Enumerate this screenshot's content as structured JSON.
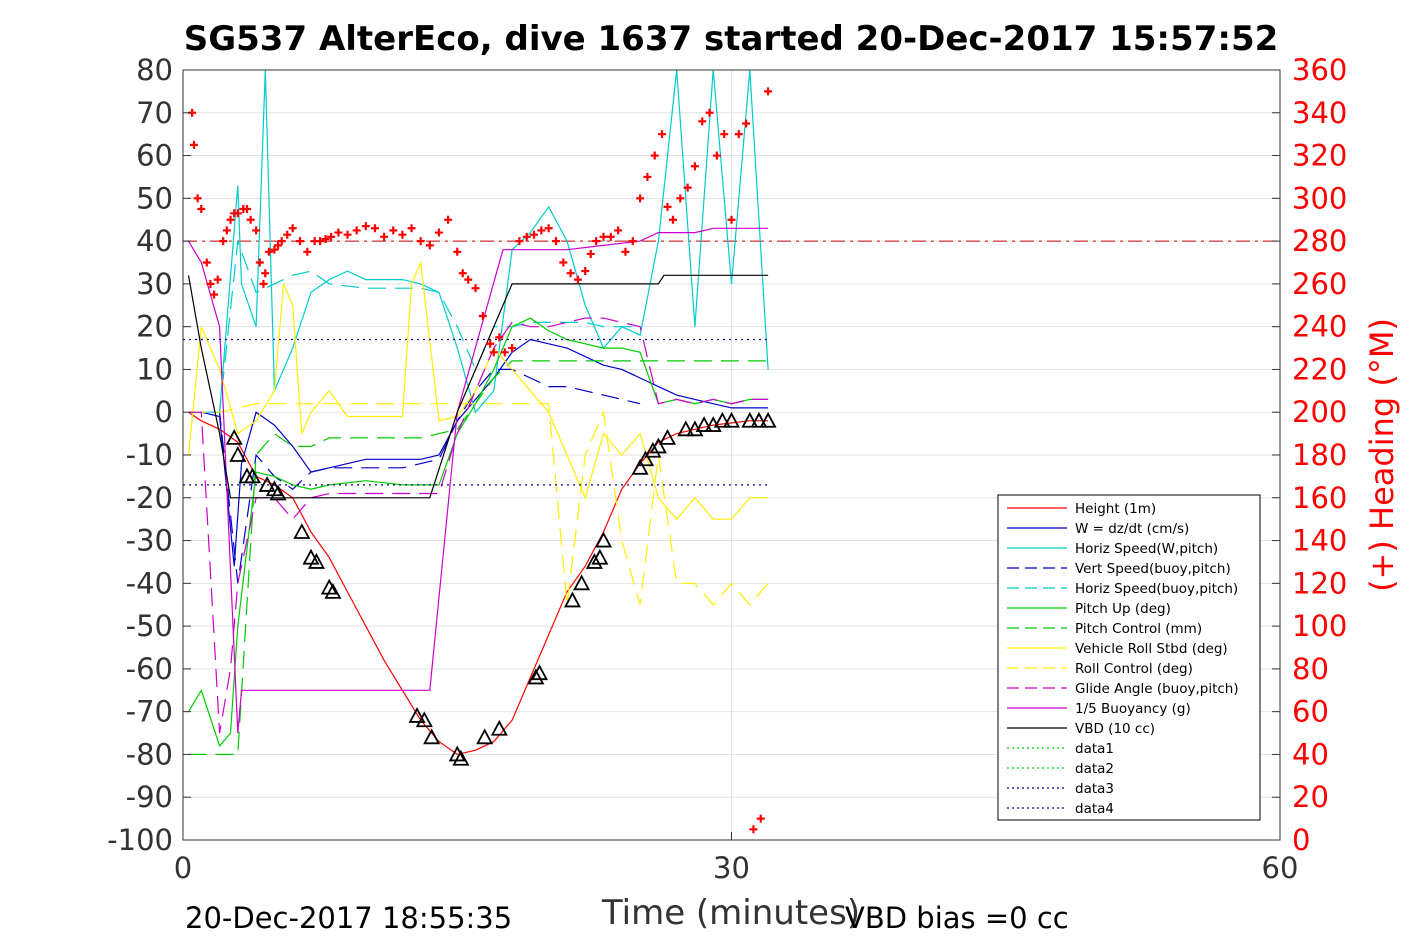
{
  "chart_data": {
    "type": "line",
    "title": "SG537 AlterEco, dive 1637 started 20-Dec-2017 15:57:52",
    "xlabel": "Time (minutes)",
    "ylabel_right": "(+) Heading (°M)",
    "xlim": [
      0,
      60
    ],
    "ylim": [
      -100,
      80
    ],
    "y2lim": [
      0,
      360
    ],
    "xticks": [
      0,
      30,
      60
    ],
    "yticks": [
      80,
      70,
      60,
      50,
      40,
      30,
      20,
      10,
      0,
      -10,
      -20,
      -30,
      -40,
      -50,
      -60,
      -70,
      -80,
      -90,
      -100
    ],
    "y2ticks": [
      360,
      340,
      320,
      300,
      280,
      260,
      240,
      220,
      200,
      180,
      160,
      140,
      120,
      100,
      80,
      60,
      40,
      20,
      0
    ],
    "grid": true,
    "legend_position": "lower-right",
    "footer_left": "20-Dec-2017 18:55:35",
    "footer_right": "VBD bias =0 cc",
    "colors": {
      "heading": "#ff0000",
      "axis_right": "#ff0000",
      "axis_left": "#333333"
    },
    "series": [
      {
        "name": "Height (1m)",
        "color": "#ff0000",
        "style": "solid",
        "x": [
          0.3,
          1,
          2,
          3,
          4,
          5,
          6,
          7,
          8,
          9,
          10,
          11,
          12,
          13,
          14,
          15,
          16,
          17,
          18,
          19,
          20,
          21,
          22,
          23,
          24,
          25,
          26,
          27,
          28,
          29,
          30,
          31,
          32
        ],
        "y": [
          0,
          -2,
          -4,
          -7,
          -15,
          -17,
          -20,
          -28,
          -34,
          -42,
          -50,
          -58,
          -65,
          -72,
          -77,
          -80,
          -79,
          -77,
          -72,
          -62,
          -52,
          -42,
          -36,
          -28,
          -18,
          -12,
          -7,
          -5,
          -4,
          -3,
          -2.5,
          -2,
          -2
        ]
      },
      {
        "name": "W = dz/dt (cm/s)",
        "color": "#0000cc",
        "style": "solid",
        "x": [
          0.3,
          1,
          2,
          2.8,
          3.2,
          4,
          5,
          6,
          7,
          8,
          10,
          12,
          13,
          14,
          15,
          16,
          17,
          18,
          19,
          20,
          21,
          22,
          23,
          24,
          25,
          26,
          27,
          28,
          29,
          30,
          31,
          32
        ],
        "y": [
          0,
          0,
          -1,
          -36,
          -12,
          0,
          -3,
          -8,
          -14,
          -13,
          -11,
          -11,
          -11,
          -10,
          -2,
          3,
          8,
          14,
          17,
          16,
          15,
          13,
          11,
          10,
          8,
          6,
          4,
          3,
          2,
          1,
          1,
          1
        ]
      },
      {
        "name": "Horiz Speed(W,pitch)",
        "color": "#00cccc",
        "style": "solid",
        "x": [
          0.3,
          2,
          3,
          3.2,
          4,
          4.5,
          5,
          6,
          7,
          8,
          9,
          10,
          12,
          13,
          14,
          15,
          16,
          17,
          18,
          19,
          20,
          21,
          22,
          23,
          24,
          25,
          26,
          27,
          28,
          29,
          30,
          31,
          32
        ],
        "y": [
          0,
          0,
          53,
          30,
          20,
          80,
          5,
          15,
          28,
          31,
          33,
          31,
          31,
          30,
          28,
          15,
          0,
          5,
          38,
          42,
          48,
          40,
          25,
          15,
          20,
          18,
          40,
          80,
          20,
          80,
          30,
          80,
          10
        ]
      },
      {
        "name": "Vert Speed(buoy,pitch)",
        "color": "#0000cc",
        "style": "dashed",
        "x": [
          0.3,
          2,
          3,
          4,
          5,
          6,
          7,
          8,
          10,
          12,
          13,
          14,
          15,
          16,
          17,
          18,
          19,
          20,
          21,
          22,
          23,
          24,
          25
        ],
        "y": [
          0,
          0,
          -40,
          -10,
          -15,
          -18,
          -14,
          -13,
          -13,
          -13,
          -12,
          -11,
          -2,
          5,
          10,
          10,
          8,
          6,
          6,
          5,
          4,
          3,
          2
        ]
      },
      {
        "name": "Horiz Speed(buoy,pitch)",
        "color": "#00cccc",
        "style": "dashed",
        "x": [
          0.3,
          2,
          3,
          4,
          5,
          6,
          7,
          8,
          10,
          12,
          13,
          14,
          15,
          16,
          17,
          18,
          19,
          20,
          21,
          22,
          23,
          24,
          25
        ],
        "y": [
          0,
          0,
          40,
          28,
          30,
          32,
          33,
          30,
          29,
          29,
          29,
          28,
          20,
          10,
          20,
          20,
          21,
          21,
          21,
          21,
          20,
          20,
          20
        ]
      },
      {
        "name": "Pitch Up (deg)",
        "color": "#00cc00",
        "style": "solid",
        "x": [
          0.3,
          1,
          2,
          2.6,
          3,
          4,
          5,
          6,
          7,
          8,
          10,
          12,
          13,
          14,
          15,
          16,
          17,
          18,
          19,
          20,
          21,
          22,
          23,
          24,
          25,
          26,
          27,
          28,
          29,
          30,
          31,
          32
        ],
        "y": [
          -70,
          -65,
          -78,
          -75,
          -50,
          -14,
          -15,
          -17,
          -18,
          -17,
          -16,
          -17,
          -17,
          -17,
          -5,
          2,
          10,
          20,
          22,
          19,
          17,
          16,
          15,
          15,
          14,
          2,
          3,
          2,
          3,
          2,
          3,
          3
        ]
      },
      {
        "name": "Pitch Control (mm)",
        "color": "#00cc00",
        "style": "dashed",
        "x": [
          0.3,
          2,
          3,
          4,
          5,
          6,
          7,
          8,
          10,
          12,
          13,
          14,
          15,
          16,
          17,
          18,
          19,
          20,
          21,
          22,
          23,
          24,
          25,
          26,
          27,
          28,
          29,
          30,
          31,
          32
        ],
        "y": [
          -80,
          -80,
          -80,
          -10,
          -5,
          -8,
          -8,
          -6,
          -6,
          -6,
          -6,
          -5,
          -4,
          2,
          8,
          12,
          12,
          12,
          12,
          12,
          12,
          12,
          12,
          12,
          12,
          12,
          12,
          12,
          12,
          12
        ]
      },
      {
        "name": "Vehicle Roll Stbd (deg)",
        "color": "#ffee00",
        "style": "solid",
        "x": [
          0.3,
          1,
          2,
          3,
          4,
          5,
          5.5,
          6,
          6.5,
          7,
          8,
          9,
          10,
          11,
          12,
          12.5,
          13,
          14,
          15,
          16,
          17,
          18,
          19,
          20,
          21,
          22,
          23,
          24,
          25,
          26,
          27,
          28,
          29,
          30,
          31,
          32
        ],
        "y": [
          -10,
          20,
          10,
          -5,
          -2,
          5,
          30,
          25,
          -5,
          0,
          5,
          -1,
          -1,
          -1,
          -1,
          30,
          35,
          -2,
          -1,
          5,
          15,
          10,
          5,
          0,
          -10,
          -20,
          -5,
          -10,
          -5,
          -20,
          -25,
          -20,
          -25,
          -25,
          -20,
          -20
        ]
      },
      {
        "name": "Roll Control (deg)",
        "color": "#ffee00",
        "style": "dashed",
        "x": [
          0.3,
          2,
          4,
          5,
          6,
          7,
          8,
          10,
          12,
          13,
          14,
          15,
          16,
          17,
          18,
          19,
          20,
          21,
          22,
          23,
          24,
          25,
          26,
          27,
          28,
          29,
          30,
          31,
          32
        ],
        "y": [
          0,
          0,
          2,
          2,
          2,
          2,
          2,
          2,
          2,
          2,
          2,
          2,
          2,
          2,
          2,
          2,
          2,
          -45,
          -10,
          0,
          -30,
          -45,
          -10,
          -40,
          -40,
          -45,
          -40,
          -45,
          -40
        ]
      },
      {
        "name": "Glide Angle (buoy,pitch)",
        "color": "#cc00cc",
        "style": "dashed",
        "x": [
          0.3,
          1,
          2,
          2.6,
          3,
          4,
          5,
          6,
          7,
          8,
          10,
          12,
          13,
          14,
          15,
          16,
          17,
          18,
          19,
          20,
          21,
          22,
          23,
          24,
          25,
          26,
          27,
          28,
          29,
          30,
          31,
          32
        ],
        "y": [
          0,
          0,
          -75,
          -60,
          -40,
          -20,
          -20,
          -25,
          -20,
          -19,
          -19,
          -19,
          -19,
          -19,
          -5,
          5,
          15,
          21,
          20,
          20,
          21,
          22,
          22,
          21,
          20,
          2,
          3,
          2,
          3,
          2,
          3,
          3
        ]
      },
      {
        "name": "1/5 Buoyancy (g)",
        "color": "#cc00cc",
        "style": "solid",
        "x": [
          0.3,
          1,
          2,
          3,
          3.2,
          7,
          10,
          13.5,
          15,
          17.5,
          19,
          21,
          23,
          25,
          26,
          27,
          28,
          29,
          30,
          31,
          32
        ],
        "y": [
          40,
          35,
          20,
          -75,
          -65,
          -65,
          -65,
          -65,
          0,
          38,
          38,
          38,
          39,
          40,
          42,
          42,
          42,
          43,
          43,
          43,
          43
        ]
      },
      {
        "name": "VBD (10 cc)",
        "color": "#000000",
        "style": "solid",
        "x": [
          0.3,
          1,
          2,
          2.6,
          3,
          13.5,
          15,
          17,
          18,
          26,
          26.3,
          32
        ],
        "y": [
          32,
          15,
          -5,
          -20,
          -20,
          -20,
          0,
          20,
          30,
          30,
          32,
          32
        ]
      },
      {
        "name": "data1",
        "color": "#00cc00",
        "style": "dotted",
        "x": [],
        "y": []
      },
      {
        "name": "data2",
        "color": "#00cc00",
        "style": "dotted",
        "x": [],
        "y": []
      },
      {
        "name": "data3",
        "color": "#000088",
        "style": "dotted",
        "x": [
          0,
          32
        ],
        "y": [
          17,
          17
        ]
      },
      {
        "name": "data4",
        "color": "#000088",
        "style": "dotted",
        "x": [
          0,
          32
        ],
        "y": [
          -17,
          -17
        ]
      }
    ],
    "reference_lines": [
      {
        "axis": "y2",
        "value": 280,
        "color": "#cc0000",
        "style": "dashdot"
      }
    ],
    "heading_points": {
      "axis": "y2",
      "marker": "+",
      "color": "#ff0000",
      "x": [
        0.5,
        0.6,
        0.8,
        1,
        1.3,
        1.5,
        1.7,
        1.9,
        2.2,
        2.4,
        2.6,
        2.8,
        3,
        3.3,
        3.5,
        3.7,
        4,
        4.2,
        4.4,
        4.5,
        4.7,
        5,
        5.2,
        5.4,
        5.7,
        6,
        6.4,
        6.8,
        7.2,
        7.5,
        7.8,
        8.1,
        8.5,
        9,
        9.5,
        10,
        10.5,
        11,
        11.5,
        12,
        12.5,
        13,
        13.5,
        14,
        14.5,
        15,
        15.3,
        15.6,
        16,
        16.4,
        16.8,
        17,
        17.3,
        17.6,
        18,
        18.4,
        18.8,
        19.2,
        19.6,
        20,
        20.4,
        20.8,
        21.2,
        21.6,
        22,
        22.3,
        22.6,
        23,
        23.4,
        23.8,
        24.2,
        24.6,
        25,
        25.4,
        25.8,
        26.2,
        26.5,
        26.8,
        27.2,
        27.6,
        28,
        28.4,
        28.8,
        29.2,
        29.6,
        30,
        30.4,
        30.8,
        31.2,
        31.6,
        32
      ],
      "y": [
        340,
        325,
        300,
        295,
        270,
        260,
        255,
        262,
        280,
        285,
        290,
        293,
        293,
        295,
        295,
        290,
        285,
        270,
        260,
        265,
        275,
        276,
        278,
        280,
        283,
        286,
        280,
        275,
        280,
        280,
        281,
        282,
        284,
        283,
        285,
        287,
        286,
        282,
        285,
        283,
        286,
        280,
        278,
        284,
        290,
        275,
        265,
        262,
        258,
        245,
        232,
        228,
        235,
        228,
        230,
        280,
        282,
        283,
        285,
        286,
        280,
        270,
        265,
        262,
        266,
        274,
        280,
        282,
        282,
        285,
        275,
        280,
        300,
        310,
        320,
        330,
        296,
        290,
        300,
        305,
        315,
        336,
        340,
        320,
        330,
        290,
        330,
        335,
        5,
        10,
        350
      ]
    },
    "triangle_points": {
      "marker": "triangle",
      "color": "#000000",
      "x": [
        2.8,
        3,
        3.5,
        3.8,
        4.6,
        5,
        5.2,
        6.5,
        7,
        7.3,
        8,
        8.2,
        12.8,
        13.2,
        13.6,
        15,
        15.2,
        16.5,
        17.3,
        19.3,
        19.5,
        21.3,
        21.8,
        22.5,
        22.8,
        23,
        25,
        25.3,
        25.7,
        26,
        26.5,
        27.5,
        28,
        28.5,
        29,
        29.5,
        30,
        31,
        31.5,
        32
      ],
      "y": [
        -6,
        -10,
        -15,
        -15,
        -17,
        -18,
        -19,
        -28,
        -34,
        -35,
        -41,
        -42,
        -71,
        -72,
        -76,
        -80,
        -81,
        -76,
        -74,
        -62,
        -61,
        -44,
        -40,
        -35,
        -34,
        -30,
        -13,
        -11,
        -9,
        -8,
        -6,
        -4,
        -4,
        -3,
        -3,
        -2,
        -2,
        -2,
        -2,
        -2
      ]
    }
  }
}
